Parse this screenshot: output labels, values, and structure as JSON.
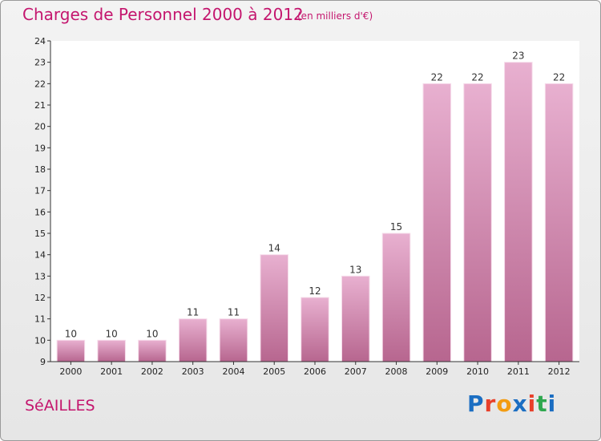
{
  "header": {
    "title": "Charges de Personnel 2000 à 2012",
    "subtitle": "(en milliers d'€)"
  },
  "footer": {
    "commune": "SéAILLES",
    "logo_letters": [
      "P",
      "r",
      "o",
      "x",
      "i",
      "t",
      "i"
    ],
    "logo_colors": [
      "#1b6ec2",
      "#e8402a",
      "#f39c12",
      "#1b6ec2",
      "#e8402a",
      "#2fa84f",
      "#1b6ec2"
    ]
  },
  "chart_data": {
    "type": "bar",
    "title": "Charges de Personnel 2000 à 2012",
    "subtitle": "(en milliers d'€)",
    "categories": [
      "2000",
      "2001",
      "2002",
      "2003",
      "2004",
      "2005",
      "2006",
      "2007",
      "2008",
      "2009",
      "2010",
      "2011",
      "2012"
    ],
    "values": [
      10,
      10,
      10,
      11,
      11,
      14,
      12,
      13,
      15,
      22,
      22,
      23,
      22
    ],
    "ylim": [
      9,
      24
    ],
    "yticks": [
      9,
      10,
      11,
      12,
      13,
      14,
      15,
      16,
      17,
      18,
      19,
      20,
      21,
      22,
      23,
      24
    ],
    "grid": false,
    "bar_color": "#d98ab6",
    "bar_color_top": "#e8b0d0",
    "bar_color_bottom": "#b7668f",
    "axis_color": "#333333",
    "plot_background": "#ffffff"
  }
}
